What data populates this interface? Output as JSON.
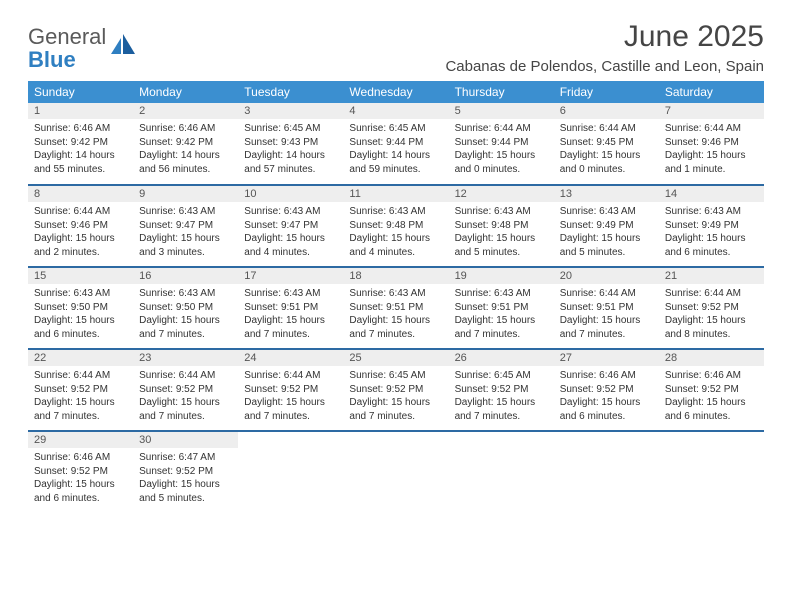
{
  "brand": {
    "word1": "General",
    "word2": "Blue"
  },
  "title": "June 2025",
  "location": "Cabanas de Polendos, Castille and Leon, Spain",
  "colors": {
    "header_bg": "#3b8fd0",
    "header_text": "#ffffff",
    "row_divider": "#2d6aa3",
    "daynum_bg": "#eeeeee",
    "text": "#333333",
    "brand_gray": "#5a5a5a",
    "brand_blue": "#2f7fc1"
  },
  "daysOfWeek": [
    "Sunday",
    "Monday",
    "Tuesday",
    "Wednesday",
    "Thursday",
    "Friday",
    "Saturday"
  ],
  "weeks": [
    [
      {
        "n": "1",
        "sr": "6:46 AM",
        "ss": "9:42 PM",
        "dl": "14 hours and 55 minutes."
      },
      {
        "n": "2",
        "sr": "6:46 AM",
        "ss": "9:42 PM",
        "dl": "14 hours and 56 minutes."
      },
      {
        "n": "3",
        "sr": "6:45 AM",
        "ss": "9:43 PM",
        "dl": "14 hours and 57 minutes."
      },
      {
        "n": "4",
        "sr": "6:45 AM",
        "ss": "9:44 PM",
        "dl": "14 hours and 59 minutes."
      },
      {
        "n": "5",
        "sr": "6:44 AM",
        "ss": "9:44 PM",
        "dl": "15 hours and 0 minutes."
      },
      {
        "n": "6",
        "sr": "6:44 AM",
        "ss": "9:45 PM",
        "dl": "15 hours and 0 minutes."
      },
      {
        "n": "7",
        "sr": "6:44 AM",
        "ss": "9:46 PM",
        "dl": "15 hours and 1 minute."
      }
    ],
    [
      {
        "n": "8",
        "sr": "6:44 AM",
        "ss": "9:46 PM",
        "dl": "15 hours and 2 minutes."
      },
      {
        "n": "9",
        "sr": "6:43 AM",
        "ss": "9:47 PM",
        "dl": "15 hours and 3 minutes."
      },
      {
        "n": "10",
        "sr": "6:43 AM",
        "ss": "9:47 PM",
        "dl": "15 hours and 4 minutes."
      },
      {
        "n": "11",
        "sr": "6:43 AM",
        "ss": "9:48 PM",
        "dl": "15 hours and 4 minutes."
      },
      {
        "n": "12",
        "sr": "6:43 AM",
        "ss": "9:48 PM",
        "dl": "15 hours and 5 minutes."
      },
      {
        "n": "13",
        "sr": "6:43 AM",
        "ss": "9:49 PM",
        "dl": "15 hours and 5 minutes."
      },
      {
        "n": "14",
        "sr": "6:43 AM",
        "ss": "9:49 PM",
        "dl": "15 hours and 6 minutes."
      }
    ],
    [
      {
        "n": "15",
        "sr": "6:43 AM",
        "ss": "9:50 PM",
        "dl": "15 hours and 6 minutes."
      },
      {
        "n": "16",
        "sr": "6:43 AM",
        "ss": "9:50 PM",
        "dl": "15 hours and 7 minutes."
      },
      {
        "n": "17",
        "sr": "6:43 AM",
        "ss": "9:51 PM",
        "dl": "15 hours and 7 minutes."
      },
      {
        "n": "18",
        "sr": "6:43 AM",
        "ss": "9:51 PM",
        "dl": "15 hours and 7 minutes."
      },
      {
        "n": "19",
        "sr": "6:43 AM",
        "ss": "9:51 PM",
        "dl": "15 hours and 7 minutes."
      },
      {
        "n": "20",
        "sr": "6:44 AM",
        "ss": "9:51 PM",
        "dl": "15 hours and 7 minutes."
      },
      {
        "n": "21",
        "sr": "6:44 AM",
        "ss": "9:52 PM",
        "dl": "15 hours and 8 minutes."
      }
    ],
    [
      {
        "n": "22",
        "sr": "6:44 AM",
        "ss": "9:52 PM",
        "dl": "15 hours and 7 minutes."
      },
      {
        "n": "23",
        "sr": "6:44 AM",
        "ss": "9:52 PM",
        "dl": "15 hours and 7 minutes."
      },
      {
        "n": "24",
        "sr": "6:44 AM",
        "ss": "9:52 PM",
        "dl": "15 hours and 7 minutes."
      },
      {
        "n": "25",
        "sr": "6:45 AM",
        "ss": "9:52 PM",
        "dl": "15 hours and 7 minutes."
      },
      {
        "n": "26",
        "sr": "6:45 AM",
        "ss": "9:52 PM",
        "dl": "15 hours and 7 minutes."
      },
      {
        "n": "27",
        "sr": "6:46 AM",
        "ss": "9:52 PM",
        "dl": "15 hours and 6 minutes."
      },
      {
        "n": "28",
        "sr": "6:46 AM",
        "ss": "9:52 PM",
        "dl": "15 hours and 6 minutes."
      }
    ],
    [
      {
        "n": "29",
        "sr": "6:46 AM",
        "ss": "9:52 PM",
        "dl": "15 hours and 6 minutes."
      },
      {
        "n": "30",
        "sr": "6:47 AM",
        "ss": "9:52 PM",
        "dl": "15 hours and 5 minutes."
      },
      null,
      null,
      null,
      null,
      null
    ]
  ],
  "labels": {
    "sunrise": "Sunrise: ",
    "sunset": "Sunset: ",
    "daylight": "Daylight: "
  }
}
